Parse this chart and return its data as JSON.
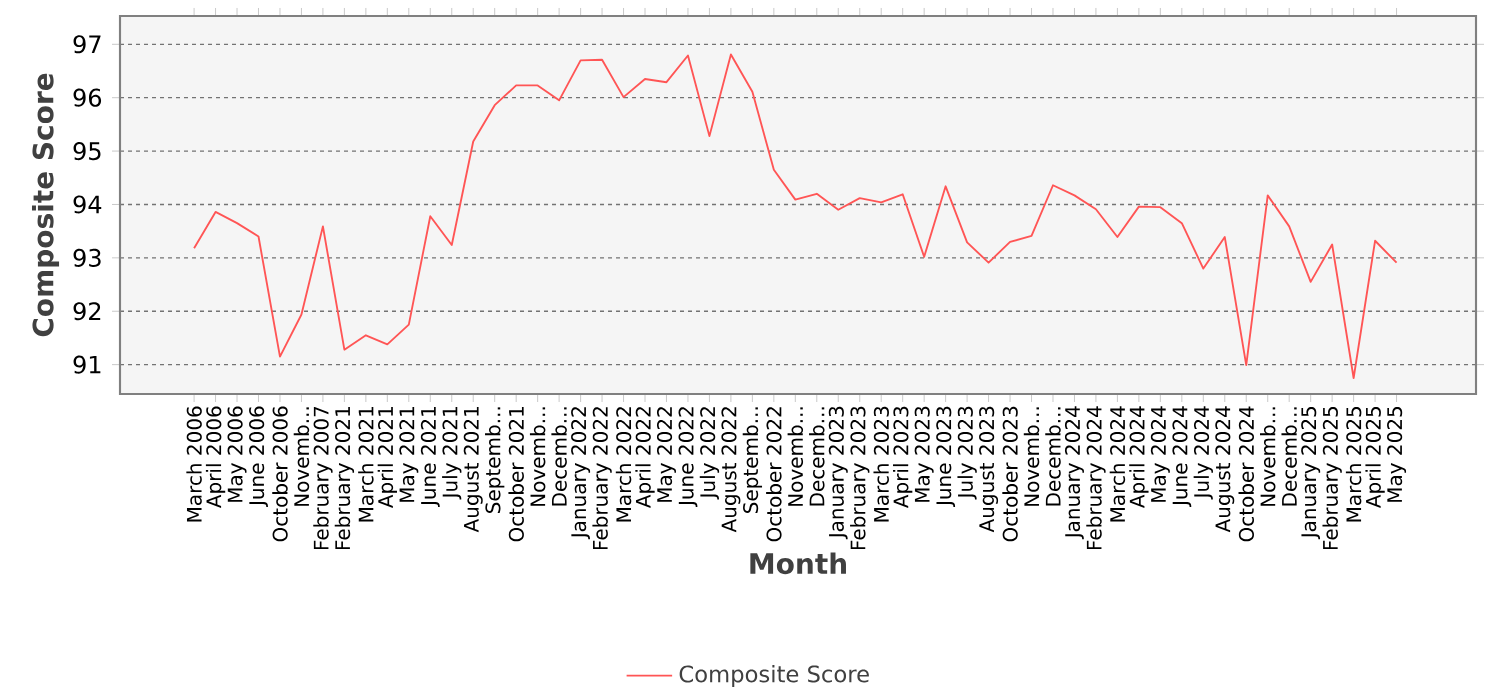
{
  "chart_data": {
    "type": "line",
    "xlabel": "Month",
    "ylabel": "Composite Score",
    "categories": [
      "March 2006",
      "April 2006",
      "May 2006",
      "June 2006",
      "October 2006",
      "Novemb...",
      "February 2007",
      "February 2021",
      "March 2021",
      "April 2021",
      "May 2021",
      "June 2021",
      "July 2021",
      "August 2021",
      "Septemb...",
      "October 2021",
      "Novemb...",
      "Decemb...",
      "January 2022",
      "February 2022",
      "March 2022",
      "April 2022",
      "May 2022",
      "June 2022",
      "July 2022",
      "August 2022",
      "Septemb...",
      "October 2022",
      "Novemb...",
      "Decemb...",
      "January 2023",
      "February 2023",
      "March 2023",
      "April 2023",
      "May 2023",
      "June 2023",
      "July 2023",
      "August 2023",
      "October 2023",
      "Novemb...",
      "Decemb...",
      "January 2024",
      "February 2024",
      "March 2024",
      "April 2024",
      "May 2024",
      "June 2024",
      "July 2024",
      "August 2024",
      "October 2024",
      "Novemb...",
      "Decemb...",
      "January 2025",
      "February 2025",
      "March 2025",
      "April 2025",
      "May 2025"
    ],
    "series": [
      {
        "name": "Composite Score",
        "color": "#ff5555",
        "values": [
          93.18,
          93.86,
          93.65,
          93.4,
          91.15,
          91.94,
          93.59,
          91.28,
          91.55,
          91.38,
          91.75,
          93.78,
          93.24,
          95.18,
          95.86,
          96.23,
          96.23,
          95.95,
          96.7,
          96.71,
          96.01,
          96.35,
          96.29,
          96.79,
          95.28,
          96.81,
          96.11,
          94.65,
          94.09,
          94.2,
          93.9,
          94.12,
          94.04,
          94.19,
          93.02,
          94.34,
          93.29,
          92.91,
          93.3,
          93.41,
          94.36,
          94.17,
          93.91,
          93.39,
          93.96,
          93.95,
          93.65,
          92.8,
          93.39,
          90.99,
          94.17,
          93.59,
          92.55,
          93.25,
          90.75,
          93.32,
          92.91
        ]
      }
    ],
    "ylim": [
      90.45,
      97.53
    ],
    "yticks": [
      91,
      92,
      93,
      94,
      95,
      96,
      97
    ],
    "grid": "y",
    "legend": "bottom",
    "marker": "none",
    "line_style": "solid"
  }
}
